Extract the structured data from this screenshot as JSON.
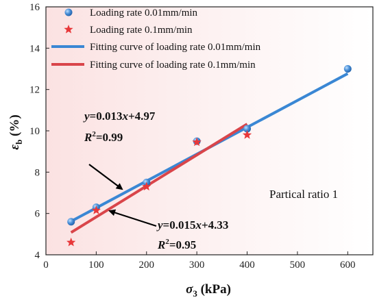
{
  "chart_data": {
    "type": "scatter",
    "xlabel_symbol": "σ",
    "xlabel_sub": "3",
    "xlabel_unit": " (kPa)",
    "ylabel_symbol": "ε",
    "ylabel_sub": "b",
    "ylabel_unit": " (%)",
    "xlim": [
      0,
      650
    ],
    "ylim": [
      4,
      16
    ],
    "xticks": [
      0,
      100,
      200,
      300,
      400,
      500,
      600
    ],
    "yticks": [
      4,
      6,
      8,
      10,
      12,
      14,
      16
    ],
    "grid": false,
    "legend_position": "top-left",
    "series": [
      {
        "name": "Loading rate 0.01mm/min",
        "kind": "points",
        "marker": "circle",
        "color": "#3f86d0",
        "x": [
          50,
          100,
          200,
          300,
          400,
          600
        ],
        "y": [
          5.6,
          6.3,
          7.5,
          9.5,
          10.1,
          13.0
        ]
      },
      {
        "name": "Loading rate 0.1mm/min",
        "kind": "points",
        "marker": "star",
        "color": "#e8383a",
        "x": [
          50,
          100,
          200,
          300,
          400
        ],
        "y": [
          4.6,
          6.15,
          7.3,
          9.45,
          9.8
        ]
      },
      {
        "name": "Fitting curve of loading rate 0.01mm/min",
        "kind": "line",
        "color": "#3a87d4",
        "slope": 0.013,
        "intercept": 4.97,
        "x_range": [
          50,
          600
        ]
      },
      {
        "name": "Fitting curve of loading rate 0.1mm/min",
        "kind": "line",
        "color": "#d9454a",
        "slope": 0.015,
        "intercept": 4.33,
        "x_range": [
          50,
          400
        ]
      }
    ],
    "annotations": {
      "eq1_y": "y",
      "eq1_rest": "=0.013",
      "eq1_x": "x",
      "eq1_const": "+4.97",
      "eq1_r": "R",
      "eq1_rsup": "2",
      "eq1_rval": "=0.99",
      "eq2_y": "y",
      "eq2_rest": "=0.015",
      "eq2_x": "x",
      "eq2_const": "+4.33",
      "eq2_r": "R",
      "eq2_rsup": "2",
      "eq2_rval": "=0.95",
      "note": "Partical ratio 1"
    }
  }
}
